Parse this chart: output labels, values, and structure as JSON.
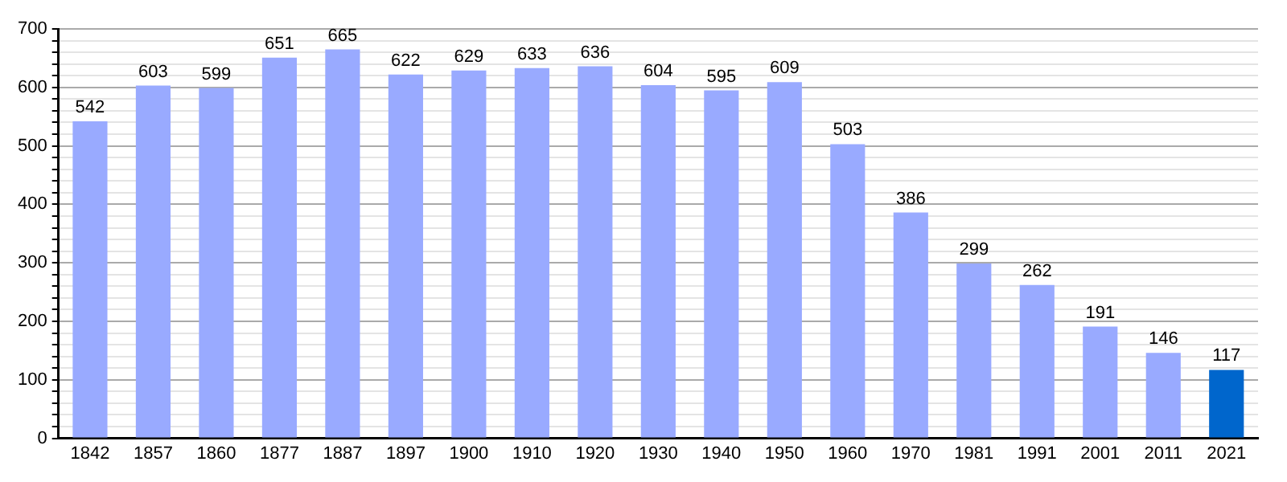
{
  "chart_data": {
    "type": "bar",
    "categories": [
      "1842",
      "1857",
      "1860",
      "1877",
      "1887",
      "1897",
      "1900",
      "1910",
      "1920",
      "1930",
      "1940",
      "1950",
      "1960",
      "1970",
      "1981",
      "1991",
      "2001",
      "2011",
      "2021"
    ],
    "values": [
      542,
      603,
      599,
      651,
      665,
      622,
      629,
      633,
      636,
      604,
      595,
      609,
      503,
      386,
      299,
      262,
      191,
      146,
      117
    ],
    "colors": [
      "#99aaff",
      "#99aaff",
      "#99aaff",
      "#99aaff",
      "#99aaff",
      "#99aaff",
      "#99aaff",
      "#99aaff",
      "#99aaff",
      "#99aaff",
      "#99aaff",
      "#99aaff",
      "#99aaff",
      "#99aaff",
      "#99aaff",
      "#99aaff",
      "#99aaff",
      "#99aaff",
      "#0066cc"
    ],
    "ylim": [
      0,
      700
    ],
    "yticks": [
      0,
      {
        "value": 20,
        "label": null
      },
      {
        "value": 40,
        "label": null
      },
      {
        "value": 60,
        "label": null
      },
      {
        "value": 80,
        "label": null
      },
      100,
      {
        "value": 120,
        "label": null
      },
      {
        "value": 140,
        "label": null
      },
      {
        "value": 160,
        "label": null
      },
      {
        "value": 180,
        "label": null
      },
      200,
      {
        "value": 220,
        "label": null
      },
      {
        "value": 240,
        "label": null
      },
      {
        "value": 260,
        "label": null
      },
      {
        "value": 280,
        "label": null
      },
      300,
      {
        "value": 320,
        "label": null
      },
      {
        "value": 340,
        "label": null
      },
      {
        "value": 360,
        "label": null
      },
      {
        "value": 380,
        "label": null
      },
      400,
      {
        "value": 420,
        "label": null
      },
      {
        "value": 440,
        "label": null
      },
      {
        "value": 460,
        "label": null
      },
      {
        "value": 480,
        "label": null
      },
      500,
      {
        "value": 520,
        "label": null
      },
      {
        "value": 540,
        "label": null
      },
      {
        "value": 560,
        "label": null
      },
      {
        "value": 580,
        "label": null
      },
      600,
      {
        "value": 620,
        "label": null
      },
      {
        "value": 640,
        "label": null
      },
      {
        "value": 660,
        "label": null
      },
      {
        "value": 680,
        "label": null
      },
      700
    ],
    "grid": "y",
    "data_labels": true,
    "legend": false
  }
}
